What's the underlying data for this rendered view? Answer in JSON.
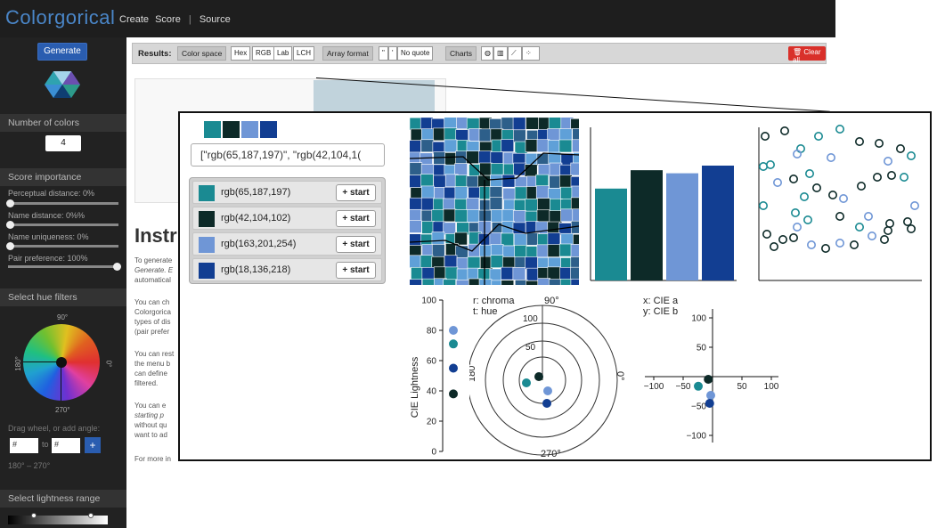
{
  "navbar": {
    "brand": "Colorgorical",
    "links": [
      "Create",
      "Score",
      "Source"
    ],
    "separator": "|"
  },
  "sidebar": {
    "generate": "Generate",
    "num_colors_header": "Number of colors",
    "num_colors_value": "4",
    "score_header": "Score importance",
    "sliders": [
      {
        "label": "Perceptual distance: 0%",
        "value": 0
      },
      {
        "label": "Name distance: 0%%",
        "value": 0
      },
      {
        "label": "Name uniqueness: 0%",
        "value": 0
      },
      {
        "label": "Pair preference: 100%",
        "value": 1
      }
    ],
    "hue_header": "Select hue filters",
    "wheel_labels": {
      "top": "90°",
      "bottom": "270°",
      "left": "180°",
      "right": "0°"
    },
    "drag_label": "Drag wheel, or add angle:",
    "angle_placeholder": "#",
    "to_label": "to",
    "plus": "+",
    "angle_range": "180° – 270°",
    "lightness_header": "Select lightness range"
  },
  "toolbar": {
    "results": "Results:",
    "color_space": "Color space",
    "color_space_opts": [
      "Hex",
      "RGB",
      "Lab",
      "LCH"
    ],
    "array_format": "Array format",
    "array_opts": [
      "\"",
      "'",
      "No quote"
    ],
    "charts": "Charts",
    "clear_all": "Clear all"
  },
  "background": {
    "instr": "Instr",
    "lines": [
      "To generate",
      "Generate. E",
      "automatical",
      "You can ch",
      "Colorgorica",
      "types of dis",
      "(pair prefer",
      "You can rest",
      "the menu b",
      "can define",
      "filtered.",
      "You can e",
      "starting p",
      "without qu",
      "want to ad",
      "For more in"
    ]
  },
  "palette": {
    "colors": [
      "#41bbc5",
      "#2a6866",
      "#a3c9fe",
      "#1288da"
    ],
    "display_colors": [
      "#1a8a92",
      "#0d2a28",
      "#6f96d6",
      "#123e92"
    ],
    "code": "[\"rgb(65,187,197)\", \"rgb(42,104,1(",
    "items": [
      {
        "label": "rgb(65,187,197)",
        "button": "+ start"
      },
      {
        "label": "rgb(42,104,102)",
        "button": "+ start"
      },
      {
        "label": "rgb(163,201,254)",
        "button": "+ start"
      },
      {
        "label": "rgb(18,136,218)",
        "button": "+ start"
      }
    ]
  },
  "charts": {
    "lightness_axis_label": "CIE Lightness",
    "lightness_ticks": [
      "100",
      "80",
      "60",
      "40",
      "20",
      "0"
    ],
    "polar_labels": [
      "r: chroma",
      "t: hue"
    ],
    "polar_angles": {
      "top": "90°",
      "bottom": "270°",
      "left": "180°",
      "right": "0°"
    },
    "polar_ticks": [
      "100",
      "50"
    ],
    "ab_labels": [
      "x: CIE a",
      "y: CIE b"
    ],
    "ab_x_ticks": [
      "−100",
      "−50",
      "50",
      "100"
    ],
    "ab_y_ticks": [
      "100",
      "50",
      "−50",
      "−100"
    ]
  },
  "chart_data": [
    {
      "type": "bar",
      "categories": [
        "rgb(65,187,197)",
        "rgb(42,104,102)",
        "rgb(163,201,254)",
        "rgb(18,136,218)"
      ],
      "values": [
        60,
        72,
        70,
        75
      ],
      "ylim": [
        0,
        100
      ]
    },
    {
      "type": "scatter",
      "title": "",
      "xlabel": "",
      "ylabel": "CIE Lightness",
      "series": [
        {
          "values": [
            80,
            71,
            55,
            38
          ]
        }
      ],
      "ylim": [
        0,
        100
      ]
    },
    {
      "type": "scatter",
      "xlabel": "x: CIE a",
      "ylabel": "y: CIE b",
      "x": [
        -40,
        -12,
        -5,
        -8
      ],
      "y": [
        -18,
        -5,
        -35,
        -50
      ],
      "xlim": [
        -100,
        100
      ],
      "ylim": [
        -100,
        100
      ]
    }
  ]
}
